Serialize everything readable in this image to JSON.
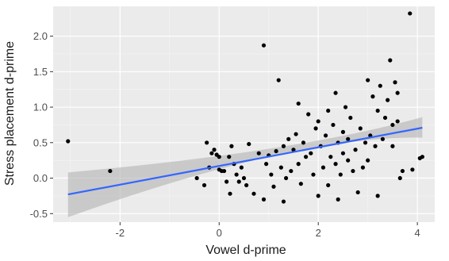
{
  "chart_data": {
    "type": "scatter",
    "title": "",
    "xlabel": "Vowel d-prime",
    "ylabel": "Stress placement d-prime",
    "xlim": [
      -3.35,
      4.35
    ],
    "ylim": [
      -0.62,
      2.42
    ],
    "x_ticks": [
      -2,
      0,
      2,
      4
    ],
    "y_ticks": [
      -0.5,
      0.0,
      0.5,
      1.0,
      1.5,
      2.0
    ],
    "x_tick_labels": [
      "-2",
      "0",
      "2",
      "4"
    ],
    "y_tick_labels": [
      "-0.5",
      "0.0",
      "0.5",
      "1.0",
      "1.5",
      "2.0"
    ],
    "grid": true,
    "legend": "none",
    "colors": {
      "panel": "#ebebeb",
      "grid_major": "#ffffff",
      "grid_minor": "#f5f5f5",
      "points": "#000000",
      "fit_line": "#3366ff",
      "ci_band": "#b3b3b3"
    },
    "fit": {
      "method": "linear",
      "x": [
        -3.05,
        4.1
      ],
      "y": [
        -0.23,
        0.71
      ],
      "ci_lower": [
        -0.55,
        0.57
      ],
      "ci_upper": [
        0.08,
        0.86
      ],
      "ci_mid_x": 1.6,
      "ci_mid_lower": 0.31,
      "ci_mid_upper": 0.42
    },
    "points": [
      {
        "x": -3.05,
        "y": 0.52
      },
      {
        "x": -2.2,
        "y": 0.1
      },
      {
        "x": -0.45,
        "y": 0.0
      },
      {
        "x": -0.3,
        "y": -0.1
      },
      {
        "x": -0.25,
        "y": 0.5
      },
      {
        "x": -0.2,
        "y": 0.15
      },
      {
        "x": -0.15,
        "y": 0.35
      },
      {
        "x": -0.1,
        "y": 0.4
      },
      {
        "x": -0.05,
        "y": 0.33
      },
      {
        "x": 0.0,
        "y": 0.12
      },
      {
        "x": 0.0,
        "y": 0.3
      },
      {
        "x": 0.05,
        "y": 0.1
      },
      {
        "x": 0.1,
        "y": 0.1
      },
      {
        "x": 0.15,
        "y": -0.05
      },
      {
        "x": 0.2,
        "y": 0.3
      },
      {
        "x": 0.22,
        "y": -0.22
      },
      {
        "x": 0.25,
        "y": 0.45
      },
      {
        "x": 0.3,
        "y": 0.2
      },
      {
        "x": 0.35,
        "y": 0.05
      },
      {
        "x": 0.4,
        "y": -0.05
      },
      {
        "x": 0.45,
        "y": 0.15
      },
      {
        "x": 0.5,
        "y": 0.0
      },
      {
        "x": 0.55,
        "y": -0.1
      },
      {
        "x": 0.6,
        "y": 0.48
      },
      {
        "x": 0.7,
        "y": -0.22
      },
      {
        "x": 0.8,
        "y": 0.35
      },
      {
        "x": 0.9,
        "y": -0.3
      },
      {
        "x": 0.9,
        "y": 1.87
      },
      {
        "x": 0.95,
        "y": 0.2
      },
      {
        "x": 1.0,
        "y": 0.32
      },
      {
        "x": 1.05,
        "y": 0.05
      },
      {
        "x": 1.1,
        "y": -0.12
      },
      {
        "x": 1.15,
        "y": 0.38
      },
      {
        "x": 1.2,
        "y": 1.38
      },
      {
        "x": 1.25,
        "y": 0.15
      },
      {
        "x": 1.3,
        "y": 0.45
      },
      {
        "x": 1.3,
        "y": -0.33
      },
      {
        "x": 1.35,
        "y": 0.0
      },
      {
        "x": 1.4,
        "y": 0.55
      },
      {
        "x": 1.45,
        "y": 0.1
      },
      {
        "x": 1.5,
        "y": 0.4
      },
      {
        "x": 1.55,
        "y": 0.62
      },
      {
        "x": 1.6,
        "y": 1.05
      },
      {
        "x": 1.6,
        "y": 0.2
      },
      {
        "x": 1.65,
        "y": -0.08
      },
      {
        "x": 1.7,
        "y": 0.5
      },
      {
        "x": 1.75,
        "y": 0.3
      },
      {
        "x": 1.8,
        "y": 0.9
      },
      {
        "x": 1.85,
        "y": 0.35
      },
      {
        "x": 1.9,
        "y": 0.05
      },
      {
        "x": 1.95,
        "y": 0.7
      },
      {
        "x": 2.0,
        "y": 0.8
      },
      {
        "x": 2.0,
        "y": -0.25
      },
      {
        "x": 2.05,
        "y": 0.45
      },
      {
        "x": 2.1,
        "y": 0.15
      },
      {
        "x": 2.15,
        "y": 0.6
      },
      {
        "x": 2.2,
        "y": 0.95
      },
      {
        "x": 2.2,
        "y": -0.1
      },
      {
        "x": 2.25,
        "y": 0.3
      },
      {
        "x": 2.3,
        "y": 0.75
      },
      {
        "x": 2.35,
        "y": 0.2
      },
      {
        "x": 2.35,
        "y": 1.2
      },
      {
        "x": 2.4,
        "y": 0.5
      },
      {
        "x": 2.4,
        "y": -0.3
      },
      {
        "x": 2.45,
        "y": 0.05
      },
      {
        "x": 2.5,
        "y": 0.65
      },
      {
        "x": 2.5,
        "y": 0.35
      },
      {
        "x": 2.55,
        "y": 1.0
      },
      {
        "x": 2.6,
        "y": 0.25
      },
      {
        "x": 2.6,
        "y": 0.55
      },
      {
        "x": 2.65,
        "y": 0.85
      },
      {
        "x": 2.7,
        "y": 0.1
      },
      {
        "x": 2.75,
        "y": 0.4
      },
      {
        "x": 2.8,
        "y": -0.2
      },
      {
        "x": 2.85,
        "y": 0.7
      },
      {
        "x": 2.9,
        "y": 0.15
      },
      {
        "x": 2.95,
        "y": 0.5
      },
      {
        "x": 3.0,
        "y": 1.38
      },
      {
        "x": 3.0,
        "y": 0.25
      },
      {
        "x": 3.05,
        "y": 0.6
      },
      {
        "x": 3.1,
        "y": 1.15
      },
      {
        "x": 3.15,
        "y": 0.45
      },
      {
        "x": 3.2,
        "y": 0.95
      },
      {
        "x": 3.2,
        "y": -0.25
      },
      {
        "x": 3.25,
        "y": 1.3
      },
      {
        "x": 3.3,
        "y": 0.55
      },
      {
        "x": 3.35,
        "y": 0.85
      },
      {
        "x": 3.4,
        "y": 1.1
      },
      {
        "x": 3.45,
        "y": 1.66
      },
      {
        "x": 3.5,
        "y": 0.75
      },
      {
        "x": 3.5,
        "y": 0.45
      },
      {
        "x": 3.55,
        "y": 1.35
      },
      {
        "x": 3.6,
        "y": 1.2
      },
      {
        "x": 3.6,
        "y": 0.8
      },
      {
        "x": 3.65,
        "y": 0.0
      },
      {
        "x": 3.7,
        "y": 0.1
      },
      {
        "x": 3.85,
        "y": 2.32
      },
      {
        "x": 3.9,
        "y": 0.12
      },
      {
        "x": 4.05,
        "y": 0.28
      },
      {
        "x": 4.1,
        "y": 0.3
      }
    ]
  }
}
